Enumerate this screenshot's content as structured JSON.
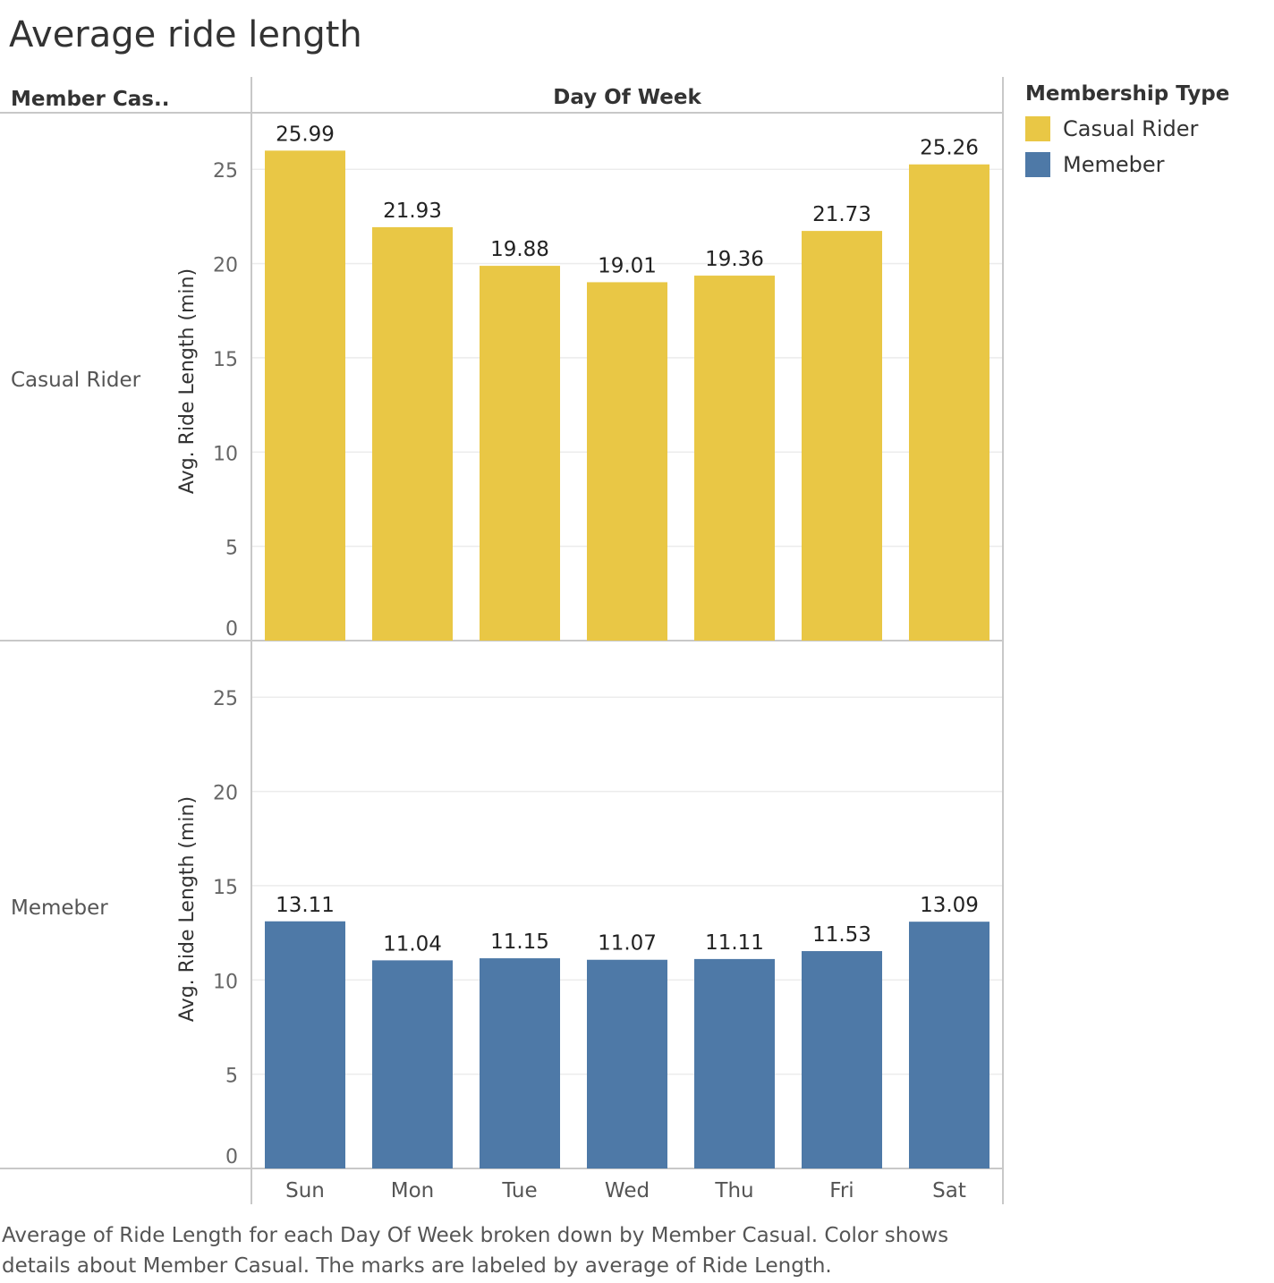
{
  "title": "Average ride length",
  "caption": "Average of Ride Length for each Day Of Week broken down by Member Casual.  Color shows details about Member Casual.  The marks are labeled by average of Ride Length.",
  "row_header": "Member Cas..",
  "column_header": "Day Of Week",
  "legend": {
    "title": "Membership Type",
    "items": [
      {
        "label": "Casual Rider",
        "color": "#E9C745"
      },
      {
        "label": "Memeber",
        "color": "#4E79A7"
      }
    ]
  },
  "chart_data": {
    "type": "bar",
    "categories": [
      "Sun",
      "Mon",
      "Tue",
      "Wed",
      "Thu",
      "Fri",
      "Sat"
    ],
    "ylabel": "Avg. Ride Length (min)",
    "xlabel": "",
    "ylim": [
      0,
      28
    ],
    "yticks": [
      0,
      5,
      10,
      15,
      20,
      25
    ],
    "grid": true,
    "series": [
      {
        "name": "Casual Rider",
        "color": "#E9C745",
        "values": [
          25.99,
          21.93,
          19.88,
          19.01,
          19.36,
          21.73,
          25.26
        ],
        "labels": [
          "25.99",
          "21.93",
          "19.88",
          "19.01",
          "19.36",
          "21.73",
          "25.26"
        ]
      },
      {
        "name": "Memeber",
        "color": "#4E79A7",
        "values": [
          13.11,
          11.04,
          11.15,
          11.07,
          11.11,
          11.53,
          13.09
        ],
        "labels": [
          "13.11",
          "11.04",
          "11.15",
          "11.07",
          "11.11",
          "11.53",
          "13.09"
        ]
      }
    ]
  }
}
